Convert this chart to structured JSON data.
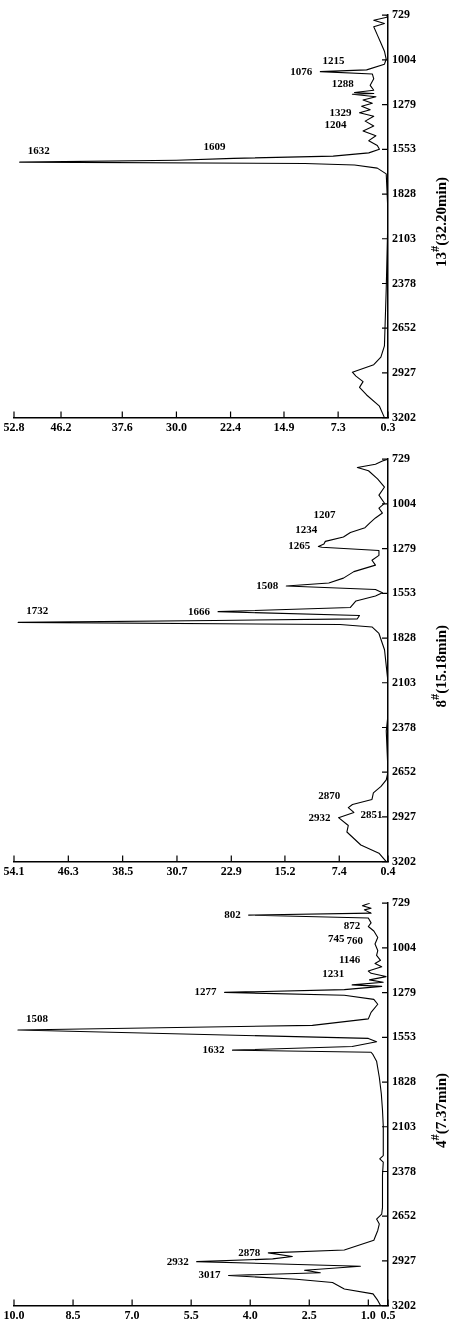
{
  "chart_data": [
    {
      "type": "line",
      "ylabel": "13$^{#}$(32.20min)",
      "ylim": [
        3202,
        729
      ],
      "yticks": [
        3202,
        2927,
        2652,
        2378,
        2103,
        1828,
        1553,
        1279,
        1004,
        729
      ],
      "xlim": [
        52.8,
        0.3
      ],
      "xticks": [
        0.3,
        7.3,
        14.9,
        22.4,
        {
          "value": 30,
          "label": "30.0"
        },
        37.6,
        46.2,
        52.8
      ],
      "series": [
        {
          "color": "#000000",
          "values": [
            3202,
            3132,
            3063,
            3016,
            2981,
            2947,
            2923,
            2877,
            2830,
            2761,
            2413,
            1948,
            1704,
            1669,
            1650,
            1640,
            1632,
            1620,
            1609,
            1595,
            1575,
            1553,
            1530,
            1500,
            1470,
            1440,
            1410,
            1380,
            1350,
            1329,
            1310,
            1288,
            1270,
            1250,
            1230,
            1215,
            1210,
            1204,
            1190,
            1160,
            1120,
            1090,
            1076,
            1065,
            1030,
            1000,
            950,
            900,
            850,
            800,
            780,
            760,
            740,
            729
          ],
          "x": [
            0.8,
            1.5,
            3.3,
            4.3,
            3.8,
            4.8,
            5.3,
            2.3,
            1.3,
            0.8,
            0.55,
            0.3,
            0.55,
            1.8,
            5,
            12,
            52.0,
            30,
            22,
            8,
            3,
            1.5,
            1.8,
            3.0,
            2.0,
            3.8,
            2.3,
            3.5,
            2.3,
            4.3,
            2.8,
            4.0,
            2.5,
            3.8,
            2.0,
            5.3,
            2.3,
            5.0,
            2.3,
            2.8,
            2.3,
            2.5,
            9.8,
            3.3,
            0.8,
            0.55,
            0.8,
            1.3,
            1.8,
            2.3,
            0.8,
            2.3,
            0.3,
            0.55
          ]
        }
      ],
      "annotations": [
        {
          "text": "1632",
          "y": 1632,
          "x": 52.0
        },
        {
          "text": "1609",
          "y": 1609,
          "x": 22
        },
        {
          "text": "1329",
          "y": 1329,
          "x": 4.3
        },
        {
          "text": "1288",
          "y": 1288,
          "x": 4.0
        },
        {
          "text": "1215",
          "y": 1215,
          "x": 5.3
        },
        {
          "text": "1204",
          "y": 1204,
          "x": 5.0
        },
        {
          "text": "1076",
          "y": 1076,
          "x": 9.8
        }
      ]
    },
    {
      "type": "line",
      "ylabel": "8$^{#}$(15.18min)",
      "ylim": [
        3202,
        729
      ],
      "yticks": [
        3202,
        2927,
        2652,
        2378,
        2103,
        1828,
        1553,
        1279,
        1004,
        729
      ],
      "xlim": [
        54.1,
        0.4
      ],
      "xticks": [
        0.4,
        7.4,
        15.2,
        22.9,
        30.7,
        38.5,
        46.3,
        54.1
      ],
      "series": [
        {
          "color": "#000000",
          "values": [
            3202,
            3150,
            3100,
            3060,
            3020,
            2980,
            2932,
            2900,
            2870,
            2851,
            2820,
            2780,
            2740,
            2700,
            2650,
            2400,
            2300,
            2100,
            1900,
            1800,
            1760,
            1745,
            1732,
            1720,
            1710,
            1690,
            1666,
            1640,
            1600,
            1570,
            1550,
            1530,
            1508,
            1490,
            1460,
            1420,
            1380,
            1350,
            1320,
            1290,
            1270,
            1265,
            1250,
            1234,
            1207,
            1180,
            1150,
            1120,
            1090,
            1060,
            1030,
            1000,
            950,
            900,
            850,
            800,
            780,
            760,
            740,
            729
          ],
          "x": [
            0.65,
            1.7,
            4.3,
            5.3,
            6.3,
            6.1,
            7.5,
            5.3,
            6.1,
            5.5,
            2.7,
            2.5,
            1.4,
            0.65,
            0.4,
            0.65,
            0.4,
            0.4,
            0.9,
            1.7,
            2.7,
            7.3,
            53.5,
            25.3,
            4.8,
            4.5,
            24.8,
            5.8,
            5.0,
            2.2,
            1.2,
            2.2,
            15.0,
            8.9,
            6.8,
            5.3,
            2.2,
            2.7,
            1.7,
            1.7,
            9.9,
            10.4,
            9.6,
            9.4,
            6.8,
            5.8,
            3.7,
            3.0,
            2.2,
            1.2,
            1.7,
            0.9,
            1.7,
            0.9,
            1.9,
            3.2,
            4.8,
            2.2,
            1.2,
            0.4
          ]
        }
      ],
      "annotations": [
        {
          "text": "2932",
          "y": 2932,
          "x": 7.5
        },
        {
          "text": "2870",
          "y": 2870,
          "x": 6.1
        },
        {
          "text": "2851",
          "y": 2851,
          "x": 5.5
        },
        {
          "text": "1732",
          "y": 1732,
          "x": 53.5
        },
        {
          "text": "1666",
          "y": 1666,
          "x": 24.8
        },
        {
          "text": "1508",
          "y": 1508,
          "x": 15.0
        },
        {
          "text": "1265",
          "y": 1265,
          "x": 10.4
        },
        {
          "text": "1234",
          "y": 1234,
          "x": 9.4
        },
        {
          "text": "1207",
          "y": 1207,
          "x": 6.8
        }
      ]
    },
    {
      "type": "line",
      "ylabel": "4$^{#}$(7.37min)",
      "ylim": [
        3202,
        729
      ],
      "yticks": [
        3202,
        2927,
        2652,
        2378,
        2103,
        1828,
        1553,
        1279,
        1004,
        729
      ],
      "xlim": [
        10,
        0.5
      ],
      "xticks": [
        0.5,
        {
          "value": 1,
          "label": "1.0"
        },
        2.5,
        {
          "value": 4,
          "label": "4.0"
        },
        5.5,
        {
          "value": 7,
          "label": "7.0"
        },
        8.5,
        {
          "value": 10,
          "label": "10.0"
        }
      ],
      "series": [
        {
          "color": "#000000",
          "values": [
            3202,
            3170,
            3130,
            3100,
            3060,
            3040,
            3017,
            3000,
            2985,
            2960,
            2932,
            2915,
            2900,
            2878,
            2860,
            2800,
            2740,
            2700,
            2670,
            2640,
            2600,
            2400,
            2320,
            2300,
            2280,
            2100,
            2000,
            1900,
            1800,
            1700,
            1660,
            1645,
            1632,
            1610,
            1580,
            1560,
            1508,
            1480,
            1440,
            1400,
            1350,
            1320,
            1295,
            1277,
            1260,
            1240,
            1231,
            1215,
            1200,
            1180,
            1160,
            1146,
            1120,
            1100,
            1080,
            1050,
            1020,
            980,
            940,
            900,
            872,
            850,
            820,
            802,
            790,
            770,
            760,
            745,
            729
          ],
          "x": [
            0.69,
            0.76,
            0.88,
            1.61,
            1.91,
            2.83,
            4.55,
            2.22,
            2.62,
            1.2,
            5.36,
            3.43,
            2.93,
            3.54,
            1.61,
            0.86,
            0.76,
            0.72,
            0.79,
            0.66,
            0.64,
            0.64,
            0.62,
            0.71,
            0.62,
            0.62,
            0.64,
            0.67,
            0.72,
            0.79,
            0.88,
            0.93,
            4.45,
            1.41,
            0.79,
            1.0,
            9.9,
            2.42,
            1.0,
            0.93,
            0.76,
            0.86,
            1.61,
            4.65,
            1.61,
            0.66,
            1.41,
            0.62,
            0.97,
            0.55,
            0.93,
            1.0,
            0.66,
            0.83,
            0.69,
            0.79,
            0.76,
            0.83,
            0.76,
            0.86,
            1.0,
            0.93,
            1.0,
            4.04,
            0.93,
            1.1,
            0.93,
            1.15,
            0.97
          ]
        }
      ],
      "annotations": [
        {
          "text": "3017",
          "y": 3017,
          "x": 4.55
        },
        {
          "text": "2932",
          "y": 2932,
          "x": 5.36
        },
        {
          "text": "2878",
          "y": 2878,
          "x": 3.54
        },
        {
          "text": "1632",
          "y": 1632,
          "x": 4.45
        },
        {
          "text": "1508",
          "y": 1508,
          "x": 9.9
        },
        {
          "text": "1277",
          "y": 1277,
          "x": 4.65
        },
        {
          "text": "1231",
          "y": 1231,
          "x": 1.41
        },
        {
          "text": "1146",
          "y": 1146,
          "x": 1.0
        },
        {
          "text": "872",
          "y": 872,
          "x": 1.0
        },
        {
          "text": "802",
          "y": 802,
          "x": 4.04
        },
        {
          "text": "760",
          "y": 760,
          "x": 0.93
        },
        {
          "text": "745",
          "y": 745,
          "x": 1.15
        }
      ]
    }
  ]
}
